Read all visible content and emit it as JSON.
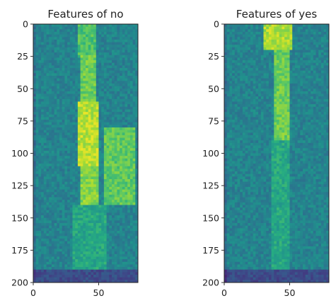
{
  "chart_data": [
    {
      "type": "heatmap",
      "title": "Features of no",
      "xlabel": "",
      "ylabel": "",
      "x_range": [
        0,
        80
      ],
      "y_range": [
        0,
        200
      ],
      "y_inverted": true,
      "x_ticks": [
        0,
        50
      ],
      "y_ticks": [
        0,
        25,
        50,
        75,
        100,
        125,
        150,
        175,
        200
      ],
      "colormap": "viridis",
      "energy_regions": [
        {
          "x": [
            35,
            48
          ],
          "y": [
            0,
            25
          ],
          "level": 0.72
        },
        {
          "x": [
            37,
            48
          ],
          "y": [
            25,
            60
          ],
          "level": 0.78
        },
        {
          "x": [
            35,
            50
          ],
          "y": [
            60,
            110
          ],
          "level": 0.9
        },
        {
          "x": [
            36,
            50
          ],
          "y": [
            110,
            140
          ],
          "level": 0.82
        },
        {
          "x": [
            55,
            78
          ],
          "y": [
            80,
            140
          ],
          "level": 0.75
        },
        {
          "x": [
            30,
            55
          ],
          "y": [
            140,
            195
          ],
          "level": 0.6
        }
      ]
    },
    {
      "type": "heatmap",
      "title": "Features of yes",
      "xlabel": "",
      "ylabel": "",
      "x_range": [
        0,
        80
      ],
      "y_range": [
        0,
        200
      ],
      "y_inverted": true,
      "x_ticks": [
        0,
        50
      ],
      "y_ticks": [
        0,
        25,
        50,
        75,
        100,
        125,
        150,
        175,
        200
      ],
      "colormap": "viridis",
      "energy_regions": [
        {
          "x": [
            30,
            52
          ],
          "y": [
            0,
            20
          ],
          "level": 0.88
        },
        {
          "x": [
            38,
            50
          ],
          "y": [
            20,
            90
          ],
          "level": 0.78
        },
        {
          "x": [
            36,
            50
          ],
          "y": [
            90,
            195
          ],
          "level": 0.6
        }
      ]
    }
  ],
  "colors": {
    "viridis_low": "#2c1a5c",
    "viridis_mid": "#21918c",
    "viridis_high": "#fde725"
  }
}
